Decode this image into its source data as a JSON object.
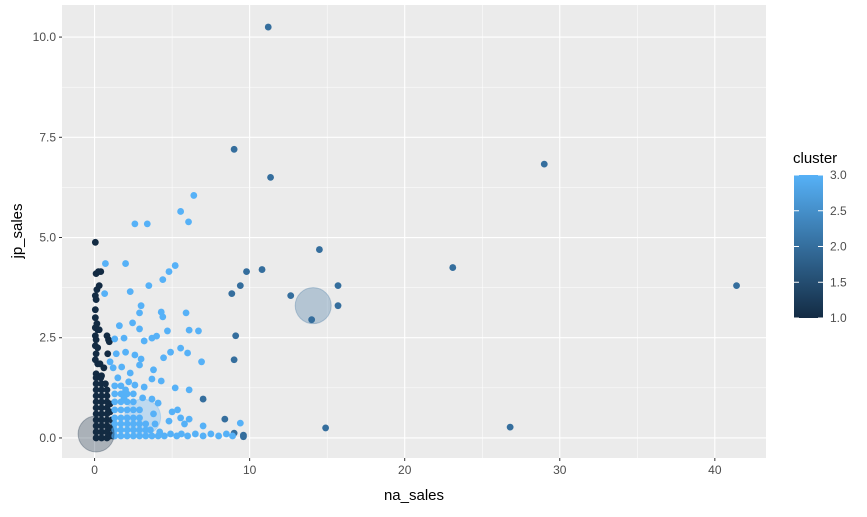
{
  "chart_data": {
    "type": "scatter",
    "title": "",
    "xlabel": "na_sales",
    "ylabel": "jp_sales",
    "xlim": [
      -2.1,
      43.3
    ],
    "ylim": [
      -0.5,
      10.8
    ],
    "xticks": [
      0,
      10,
      20,
      30,
      40
    ],
    "xtick_labels": [
      "0",
      "10",
      "20",
      "30",
      "40"
    ],
    "yticks": [
      0,
      2.5,
      5,
      7.5,
      10
    ],
    "ytick_labels": [
      "0.0",
      "2.5",
      "5.0",
      "7.5",
      "10.0"
    ],
    "grid": true,
    "background": "#EBEBEB",
    "legend": {
      "title": "cluster",
      "type": "colorbar",
      "placement": "right",
      "range": [
        1,
        3
      ],
      "ticks": [
        1,
        1.5,
        2,
        2.5,
        3
      ],
      "tick_labels": [
        "1.0",
        "1.5",
        "2.0",
        "2.5",
        "3.0"
      ],
      "low_color": "#132B43",
      "high_color": "#56B1F7"
    },
    "series": [
      {
        "cluster": 1,
        "points": [
          [
            0.05,
            4.88
          ],
          [
            0.1,
            4.1
          ],
          [
            0.4,
            4.15
          ],
          [
            0.25,
            4.15
          ],
          [
            0.3,
            3.8
          ],
          [
            0.15,
            3.7
          ],
          [
            0.05,
            3.55
          ],
          [
            0.1,
            3.45
          ],
          [
            0.05,
            3.2
          ],
          [
            0.05,
            3.0
          ],
          [
            0.15,
            2.85
          ],
          [
            0.05,
            2.75
          ],
          [
            0.2,
            2.7
          ],
          [
            0.3,
            2.7
          ],
          [
            0.05,
            2.55
          ],
          [
            0.1,
            2.45
          ],
          [
            0.8,
            2.55
          ],
          [
            0.9,
            2.45
          ],
          [
            0.95,
            2.4
          ],
          [
            0.05,
            2.3
          ],
          [
            0.2,
            2.25
          ],
          [
            0.85,
            2.1
          ],
          [
            0.1,
            2.1
          ],
          [
            0.05,
            1.95
          ],
          [
            0.2,
            1.85
          ],
          [
            0.35,
            1.85
          ],
          [
            0.6,
            1.75
          ],
          [
            0.45,
            1.55
          ],
          [
            0.1,
            1.6
          ],
          [
            0.1,
            0
          ],
          [
            0.45,
            0
          ],
          [
            0.8,
            0
          ],
          [
            0.1,
            0.15
          ],
          [
            0.45,
            0.15
          ],
          [
            0.8,
            0.15
          ],
          [
            0.1,
            0.3
          ],
          [
            0.45,
            0.3
          ],
          [
            0.8,
            0.3
          ],
          [
            0.1,
            0.45
          ],
          [
            0.45,
            0.45
          ],
          [
            0.8,
            0.45
          ],
          [
            0.1,
            0.6
          ],
          [
            0.45,
            0.6
          ],
          [
            0.8,
            0.6
          ],
          [
            0.1,
            0.75
          ],
          [
            0.45,
            0.75
          ],
          [
            0.8,
            0.75
          ],
          [
            0.1,
            0.9
          ],
          [
            0.45,
            0.9
          ],
          [
            0.8,
            0.9
          ],
          [
            0.1,
            1.05
          ],
          [
            0.45,
            1.05
          ],
          [
            0.8,
            1.05
          ],
          [
            0.1,
            1.2
          ],
          [
            0.45,
            1.2
          ],
          [
            0.8,
            1.2
          ],
          [
            0.1,
            1.35
          ],
          [
            0.45,
            1.35
          ],
          [
            0.7,
            1.35
          ],
          [
            0.1,
            1.5
          ],
          [
            0.4,
            1.5
          ],
          [
            1.0,
            0.05
          ],
          [
            1.05,
            0.25
          ],
          [
            1.1,
            0.45
          ],
          [
            1.0,
            0.65
          ],
          [
            1.0,
            0.85
          ],
          [
            1.2,
            0.1
          ],
          [
            1.2,
            0.05
          ]
        ]
      },
      {
        "cluster": 2,
        "points": [
          [
            11.2,
            10.25
          ],
          [
            9.0,
            7.2
          ],
          [
            11.35,
            6.5
          ],
          [
            29.0,
            6.83
          ],
          [
            14.5,
            4.7
          ],
          [
            10.8,
            4.2
          ],
          [
            9.8,
            4.15
          ],
          [
            23.1,
            4.25
          ],
          [
            41.4,
            3.8
          ],
          [
            8.85,
            3.6
          ],
          [
            9.4,
            3.8
          ],
          [
            15.7,
            3.8
          ],
          [
            12.65,
            3.55
          ],
          [
            15.7,
            3.3
          ],
          [
            14.0,
            2.95
          ],
          [
            9.1,
            2.55
          ],
          [
            9.0,
            1.95
          ],
          [
            7.0,
            0.97
          ],
          [
            8.4,
            0.47
          ],
          [
            9.0,
            0.12
          ],
          [
            9.6,
            0.07
          ],
          [
            9.6,
            0.03
          ],
          [
            14.9,
            0.25
          ],
          [
            26.8,
            0.27
          ]
        ]
      },
      {
        "cluster": 3,
        "points": [
          [
            6.4,
            6.05
          ],
          [
            5.55,
            5.65
          ],
          [
            6.06,
            5.39
          ],
          [
            2.6,
            5.34
          ],
          [
            3.4,
            5.34
          ],
          [
            0.7,
            4.35
          ],
          [
            2.0,
            4.35
          ],
          [
            5.2,
            4.3
          ],
          [
            4.8,
            4.15
          ],
          [
            4.4,
            3.95
          ],
          [
            3.5,
            3.8
          ],
          [
            2.3,
            3.65
          ],
          [
            0.65,
            3.6
          ],
          [
            3.0,
            3.3
          ],
          [
            2.9,
            3.12
          ],
          [
            4.3,
            3.14
          ],
          [
            4.4,
            3.02
          ],
          [
            5.9,
            3.12
          ],
          [
            1.6,
            2.8
          ],
          [
            2.45,
            2.87
          ],
          [
            2.9,
            2.72
          ],
          [
            4.7,
            2.67
          ],
          [
            6.1,
            2.69
          ],
          [
            6.7,
            2.67
          ],
          [
            1.3,
            2.47
          ],
          [
            1.9,
            2.49
          ],
          [
            3.2,
            2.42
          ],
          [
            3.7,
            2.49
          ],
          [
            4.0,
            2.54
          ],
          [
            5.55,
            2.24
          ],
          [
            6.0,
            2.12
          ],
          [
            4.9,
            2.14
          ],
          [
            4.45,
            2.0
          ],
          [
            6.9,
            1.9
          ],
          [
            1.4,
            2.1
          ],
          [
            2.0,
            2.14
          ],
          [
            2.6,
            2.07
          ],
          [
            3.0,
            1.97
          ],
          [
            1.0,
            1.9
          ],
          [
            1.2,
            1.75
          ],
          [
            1.75,
            1.77
          ],
          [
            2.3,
            1.62
          ],
          [
            2.9,
            1.82
          ],
          [
            3.8,
            1.7
          ],
          [
            3.7,
            1.47
          ],
          [
            4.3,
            1.42
          ],
          [
            5.2,
            1.25
          ],
          [
            6.1,
            1.2
          ],
          [
            3.2,
            1.27
          ],
          [
            2.6,
            1.32
          ],
          [
            2.0,
            1.2
          ],
          [
            1.9,
            1.0
          ],
          [
            3.1,
            1.0
          ],
          [
            3.7,
            0.97
          ],
          [
            4.1,
            0.87
          ],
          [
            5.0,
            0.65
          ],
          [
            5.35,
            0.7
          ],
          [
            3.8,
            0.6
          ],
          [
            4.8,
            0.42
          ],
          [
            5.55,
            0.5
          ],
          [
            6.1,
            0.47
          ],
          [
            5.8,
            0.35
          ],
          [
            3.9,
            0.35
          ],
          [
            7.0,
            0.3
          ],
          [
            9.4,
            0.37
          ],
          [
            1.3,
            0.05
          ],
          [
            1.7,
            0.05
          ],
          [
            2.1,
            0.05
          ],
          [
            2.5,
            0.05
          ],
          [
            2.9,
            0.05
          ],
          [
            3.3,
            0.05
          ],
          [
            1.3,
            0.2
          ],
          [
            1.7,
            0.2
          ],
          [
            2.1,
            0.2
          ],
          [
            2.5,
            0.2
          ],
          [
            2.9,
            0.2
          ],
          [
            3.3,
            0.2
          ],
          [
            1.3,
            0.35
          ],
          [
            1.7,
            0.35
          ],
          [
            2.1,
            0.35
          ],
          [
            2.5,
            0.35
          ],
          [
            2.9,
            0.35
          ],
          [
            3.3,
            0.35
          ],
          [
            1.3,
            0.5
          ],
          [
            1.7,
            0.5
          ],
          [
            2.1,
            0.5
          ],
          [
            2.5,
            0.5
          ],
          [
            2.9,
            0.5
          ],
          [
            1.3,
            0.7
          ],
          [
            1.7,
            0.7
          ],
          [
            2.1,
            0.7
          ],
          [
            2.5,
            0.7
          ],
          [
            2.9,
            0.7
          ],
          [
            1.3,
            0.9
          ],
          [
            1.7,
            0.9
          ],
          [
            2.1,
            0.9
          ],
          [
            2.5,
            0.9
          ],
          [
            1.3,
            1.1
          ],
          [
            1.7,
            1.1
          ],
          [
            2.1,
            1.1
          ],
          [
            2.5,
            1.1
          ],
          [
            1.3,
            1.3
          ],
          [
            1.7,
            1.3
          ],
          [
            2.2,
            1.4
          ],
          [
            1.5,
            1.5
          ],
          [
            3.7,
            0.05
          ],
          [
            4.1,
            0.05
          ],
          [
            4.5,
            0.05
          ],
          [
            4.9,
            0.1
          ],
          [
            5.3,
            0.05
          ],
          [
            5.6,
            0.1
          ],
          [
            6.0,
            0.05
          ],
          [
            6.5,
            0.1
          ],
          [
            7.0,
            0.05
          ],
          [
            7.5,
            0.1
          ],
          [
            8.0,
            0.05
          ],
          [
            8.5,
            0.1
          ],
          [
            8.9,
            0.05
          ],
          [
            3.6,
            0.2
          ],
          [
            4.2,
            0.15
          ]
        ]
      }
    ],
    "centroids": [
      {
        "cluster": 1,
        "x": 0.1,
        "y": 0.1
      },
      {
        "cluster": 2,
        "x": 14.1,
        "y": 3.3
      },
      {
        "cluster": 3,
        "x": 3.1,
        "y": 0.52
      }
    ]
  }
}
